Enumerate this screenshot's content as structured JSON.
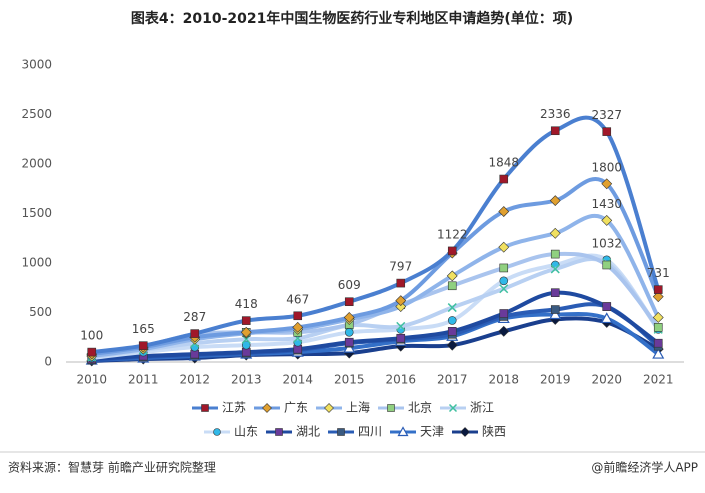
{
  "chart_data": {
    "type": "line",
    "title": "图表4：2010-2021年中国生物医药行业专利地区申请趋势(单位：项)",
    "source": "资料来源：智慧芽 前瞻产业研究院整理",
    "brand": "@前瞻经济学人APP",
    "categories": [
      "2010",
      "2011",
      "2012",
      "2013",
      "2014",
      "2015",
      "2016",
      "2017",
      "2018",
      "2019",
      "2020",
      "2021"
    ],
    "ylim": [
      0,
      3000
    ],
    "yticks": [
      0,
      500,
      1000,
      1500,
      2000,
      2500,
      3000
    ],
    "series": [
      {
        "name": "江苏",
        "color": "#4a7fd0",
        "marker_color": "#a0182a",
        "marker": "square",
        "values": [
          100,
          165,
          287,
          418,
          467,
          609,
          797,
          1122,
          1848,
          2336,
          2327,
          731
        ]
      },
      {
        "name": "广东",
        "color": "#6d9be0",
        "marker_color": "#e0a030",
        "marker": "diamond",
        "values": [
          80,
          150,
          250,
          300,
          350,
          450,
          620,
          1100,
          1520,
          1630,
          1800,
          660
        ]
      },
      {
        "name": "上海",
        "color": "#8fb4ea",
        "marker_color": "#f0e060",
        "marker": "diamond",
        "values": [
          60,
          130,
          230,
          290,
          330,
          430,
          560,
          870,
          1160,
          1300,
          1430,
          450
        ]
      },
      {
        "name": "北京",
        "color": "#a9c4ee",
        "marker_color": "#90d080",
        "marker": "square",
        "values": [
          90,
          160,
          280,
          300,
          300,
          380,
          580,
          770,
          950,
          1090,
          980,
          350
        ]
      },
      {
        "name": "浙江",
        "color": "#b8d0f2",
        "marker_color": "#40c0a0",
        "marker": "star",
        "values": [
          50,
          120,
          190,
          230,
          240,
          370,
          360,
          550,
          740,
          940,
          1000,
          330
        ]
      },
      {
        "name": "山东",
        "color": "#c9dcf6",
        "marker_color": "#30b8e8",
        "marker": "circle",
        "values": [
          40,
          100,
          150,
          170,
          200,
          300,
          330,
          420,
          820,
          980,
          1032,
          330
        ]
      },
      {
        "name": "湖北",
        "color": "#1f4aa0",
        "marker_color": "#6a3a9a",
        "marker": "square",
        "values": [
          30,
          60,
          80,
          100,
          130,
          200,
          240,
          310,
          490,
          700,
          560,
          190
        ]
      },
      {
        "name": "四川",
        "color": "#2a5cb5",
        "marker_color": "#3a5a80",
        "marker": "square",
        "values": [
          20,
          50,
          70,
          90,
          120,
          190,
          230,
          280,
          460,
          530,
          560,
          160
        ]
      },
      {
        "name": "天津",
        "color": "#3470c8",
        "marker_color": "#ffffff",
        "marker": "triangle",
        "values": [
          20,
          40,
          60,
          80,
          100,
          140,
          210,
          260,
          440,
          480,
          440,
          80
        ]
      },
      {
        "name": "陕西",
        "color": "#1a3f8e",
        "marker_color": "#0a1a40",
        "marker": "diamond",
        "values": [
          10,
          30,
          40,
          70,
          80,
          90,
          160,
          170,
          310,
          430,
          400,
          130
        ]
      }
    ],
    "value_labels": [
      [
        "100",
        "165",
        "287",
        "418",
        "467",
        "609",
        "797",
        "1122",
        "1848",
        "2336",
        "2327",
        "731"
      ],
      [
        null,
        null,
        null,
        null,
        null,
        null,
        null,
        null,
        null,
        null,
        "1800",
        null
      ],
      [
        null,
        null,
        null,
        null,
        null,
        null,
        null,
        null,
        null,
        null,
        "1430",
        null
      ],
      [
        null,
        null,
        null,
        null,
        null,
        null,
        null,
        null,
        null,
        null,
        null,
        null
      ],
      [
        null,
        null,
        null,
        null,
        null,
        null,
        null,
        null,
        null,
        null,
        null,
        null
      ],
      [
        null,
        null,
        null,
        null,
        null,
        null,
        null,
        null,
        null,
        null,
        "1032",
        null
      ],
      [
        null,
        null,
        null,
        null,
        null,
        null,
        null,
        null,
        null,
        null,
        null,
        null
      ],
      [
        null,
        null,
        null,
        null,
        null,
        null,
        null,
        null,
        null,
        null,
        null,
        null
      ],
      [
        null,
        null,
        null,
        null,
        null,
        null,
        null,
        null,
        null,
        null,
        null,
        null
      ],
      [
        null,
        null,
        null,
        null,
        null,
        null,
        null,
        null,
        null,
        null,
        null,
        null
      ]
    ]
  }
}
